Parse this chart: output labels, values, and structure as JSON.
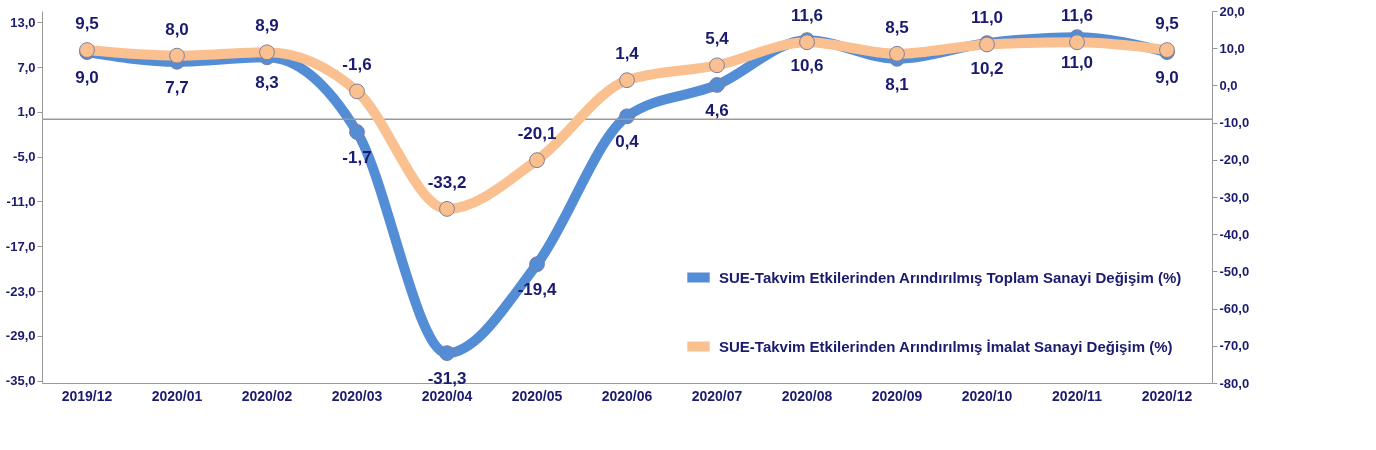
{
  "chart_data": {
    "type": "line",
    "categories": [
      "2019/12",
      "2020/01",
      "2020/02",
      "2020/03",
      "2020/04",
      "2020/05",
      "2020/06",
      "2020/07",
      "2020/08",
      "2020/09",
      "2020/10",
      "2020/11",
      "2020/12"
    ],
    "series": [
      {
        "name": "SUE-Takvim Etkilerinden Arındırılmış Toplam Sanayi Değişim (%)",
        "color": "#538dd5",
        "values": [
          9.0,
          7.7,
          8.3,
          -1.7,
          -31.3,
          -19.4,
          0.4,
          4.6,
          10.6,
          8.1,
          10.2,
          11.0,
          9.0
        ],
        "value_labels": [
          "9,0",
          "7,7",
          "8,3",
          "-1,7",
          "-31,3",
          "-19,4",
          "0,4",
          "4,6",
          "10,6",
          "8,1",
          "10,2",
          "11,0",
          "9,0"
        ]
      },
      {
        "name": "SUE-Takvim Etkilerinden Arındırılmış İmalat Sanayi Değişim (%)",
        "color": "#fac090",
        "axis": "y2",
        "values": [
          9.5,
          8.0,
          8.9,
          -1.6,
          -33.2,
          -20.1,
          1.4,
          5.4,
          11.6,
          8.5,
          11.0,
          11.6,
          9.5
        ],
        "value_labels": [
          "9,5",
          "8,0",
          "8,9",
          "-1,6",
          "-33,2",
          "-20,1",
          "1,4",
          "5,4",
          "11,6",
          "8,5",
          "11,0",
          "11,6",
          "9,5"
        ]
      }
    ],
    "ylim": [
      -35.3,
      14.5
    ],
    "yticks": [
      {
        "value": -35,
        "label": "-35,0"
      },
      {
        "value": -29,
        "label": "-29,0"
      },
      {
        "value": -23,
        "label": "-23,0"
      },
      {
        "value": -17,
        "label": "-17,0"
      },
      {
        "value": -11,
        "label": "-11,0"
      },
      {
        "value": -5,
        "label": "-5,0"
      },
      {
        "value": 1,
        "label": "1,0"
      },
      {
        "value": 7,
        "label": "7,0"
      },
      {
        "value": 13,
        "label": "13,0"
      }
    ],
    "y2lim": [
      -80,
      20
    ],
    "y2ticks": [
      {
        "value": -80,
        "label": "-80,0"
      },
      {
        "value": -70,
        "label": "-70,0"
      },
      {
        "value": -60,
        "label": "-60,0"
      },
      {
        "value": -50,
        "label": "-50,0"
      },
      {
        "value": -40,
        "label": "-40,0"
      },
      {
        "value": -30,
        "label": "-30,0"
      },
      {
        "value": -20,
        "label": "-20,0"
      },
      {
        "value": -10,
        "label": "-10,0"
      },
      {
        "value": 0,
        "label": "0,0"
      },
      {
        "value": 10,
        "label": "10,0"
      },
      {
        "value": 20,
        "label": "20,0"
      }
    ],
    "ref_lines": [
      {
        "axis": "y",
        "value": 0
      }
    ],
    "legend": "right",
    "marker": "circle",
    "grid": false
  }
}
